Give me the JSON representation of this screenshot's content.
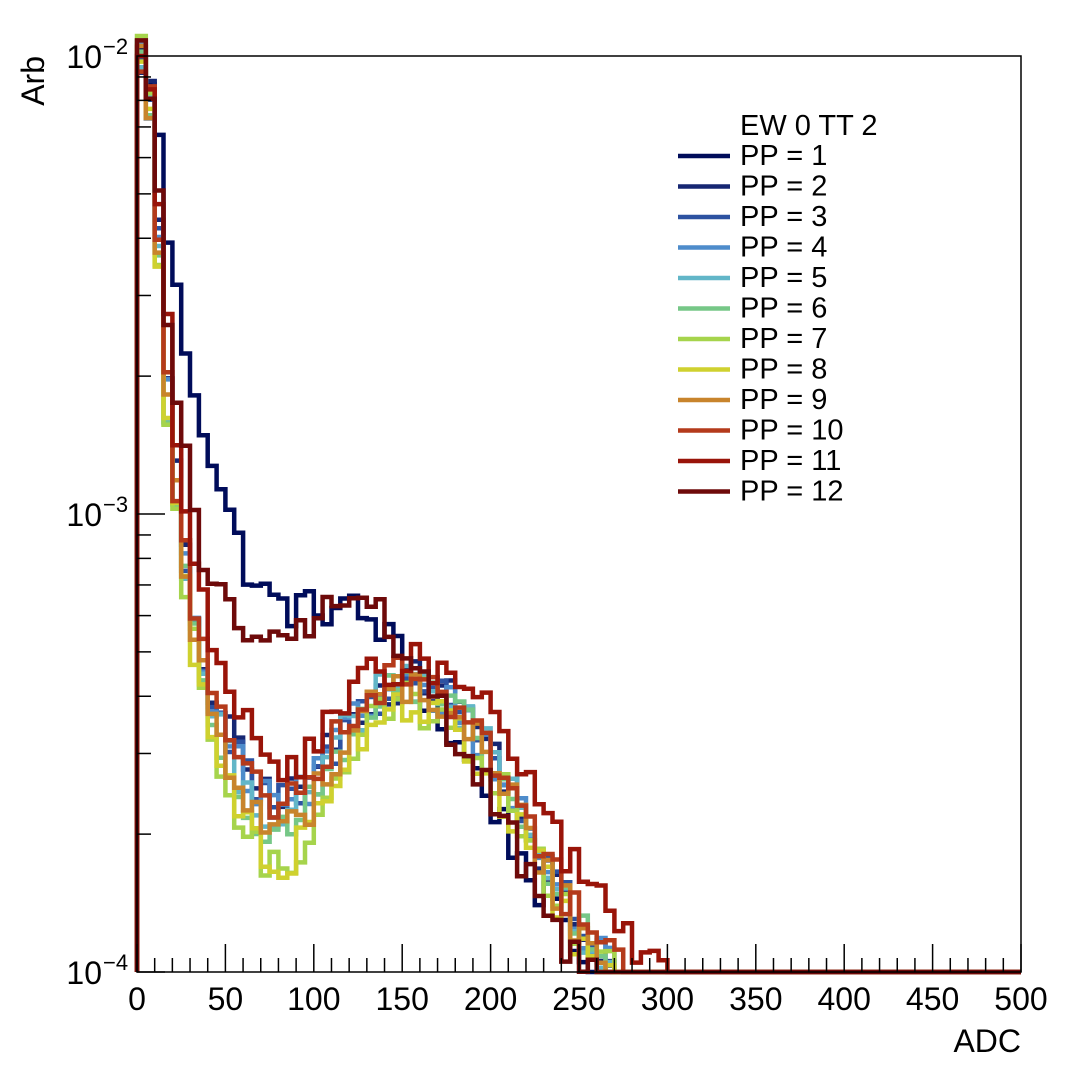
{
  "chart_data": {
    "type": "line",
    "xlabel": "ADC",
    "ylabel": "Arb",
    "xlim": [
      0,
      500
    ],
    "ylim": [
      0.0001,
      0.01
    ],
    "yscale": "log",
    "x_ticks": [
      "0",
      "50",
      "100",
      "150",
      "200",
      "250",
      "300",
      "350",
      "400",
      "450",
      "500"
    ],
    "y_ticks": [
      {
        "value": 0.0001,
        "base": "10",
        "exp": "−4"
      },
      {
        "value": 0.001,
        "base": "10",
        "exp": "−3"
      },
      {
        "value": 0.01,
        "base": "10",
        "exp": "−2"
      }
    ],
    "legend": {
      "title": "EW 0 TT 2",
      "position": "top-right"
    },
    "x": [
      0,
      5,
      10,
      15,
      20,
      25,
      30,
      40,
      50,
      60,
      70,
      80,
      90,
      100,
      110,
      120,
      130,
      140,
      150,
      160,
      170,
      180,
      190,
      200,
      210,
      220,
      230,
      240,
      250,
      260,
      270,
      280,
      290,
      300,
      310,
      320,
      330,
      340,
      350,
      360
    ],
    "series": [
      {
        "name": "PP = 1",
        "color": "#000c5a",
        "values": [
          0.01,
          0.01,
          0.0085,
          0.0048,
          0.0034,
          0.0026,
          0.0021,
          0.00145,
          0.00105,
          0.0008,
          0.00068,
          0.00063,
          0.00062,
          0.00062,
          0.00063,
          0.00062,
          0.00059,
          0.00056,
          0.00048,
          0.00042,
          0.00036,
          0.00032,
          0.00028,
          0.00024,
          0.0002,
          0.00017,
          0.000148,
          0.000125,
          0.000108,
          0.0001,
          0.0001,
          0.0001,
          0.0001,
          0.0001,
          0.0001,
          0.0001,
          0.0001,
          0.0001,
          0.0001,
          0.0001
        ]
      },
      {
        "name": "PP = 2",
        "color": "#162672",
        "values": [
          0.01,
          0.01,
          0.0068,
          0.0026,
          0.0015,
          0.00095,
          0.00068,
          0.00043,
          0.00034,
          0.00029,
          0.00025,
          0.000235,
          0.000245,
          0.00027,
          0.00031,
          0.00035,
          0.00039,
          0.00042,
          0.00043,
          0.00043,
          0.00042,
          0.0004,
          0.00036,
          0.00031,
          0.00026,
          0.00021,
          0.00017,
          0.000145,
          0.000125,
          0.00011,
          0.0001,
          0.0001,
          0.0001,
          0.0001,
          0.0001,
          0.0001,
          0.0001,
          0.0001,
          0.0001,
          0.0001
        ]
      },
      {
        "name": "PP = 3",
        "color": "#2d52a1",
        "values": [
          0.01,
          0.01,
          0.0066,
          0.0025,
          0.00145,
          0.00092,
          0.00066,
          0.00042,
          0.00033,
          0.00028,
          0.00024,
          0.00023,
          0.00024,
          0.00026,
          0.0003,
          0.00034,
          0.00038,
          0.00041,
          0.00043,
          0.00042,
          0.00041,
          0.00039,
          0.00035,
          0.00031,
          0.00026,
          0.00022,
          0.00018,
          0.00015,
          0.00013,
          0.000115,
          0.000105,
          0.0001,
          0.0001,
          0.0001,
          0.0001,
          0.0001,
          0.0001,
          0.0001,
          0.0001,
          0.0001
        ]
      },
      {
        "name": "PP = 4",
        "color": "#4e8ccb",
        "values": [
          0.01,
          0.01,
          0.0064,
          0.0024,
          0.0014,
          0.0009,
          0.00065,
          0.00041,
          0.00032,
          0.00027,
          0.00024,
          0.000225,
          0.000235,
          0.00026,
          0.0003,
          0.00034,
          0.00038,
          0.00041,
          0.00043,
          0.00042,
          0.00041,
          0.00038,
          0.00034,
          0.0003,
          0.00025,
          0.00021,
          0.00017,
          0.000145,
          0.000125,
          0.00011,
          0.0001,
          0.0001,
          0.0001,
          0.0001,
          0.0001,
          0.0001,
          0.0001,
          0.0001,
          0.0001,
          0.0001
        ]
      },
      {
        "name": "PP = 5",
        "color": "#62b6c8",
        "values": [
          0.01,
          0.01,
          0.0062,
          0.0023,
          0.00135,
          0.00088,
          0.00063,
          0.0004,
          0.00031,
          0.00026,
          0.00023,
          0.00022,
          0.00023,
          0.000255,
          0.0003,
          0.00034,
          0.00038,
          0.00042,
          0.00044,
          0.00043,
          0.00041,
          0.00038,
          0.00034,
          0.0003,
          0.00025,
          0.00021,
          0.00017,
          0.000145,
          0.000125,
          0.00011,
          0.0001,
          0.0001,
          0.0001,
          0.0001,
          0.0001,
          0.0001,
          0.0001,
          0.0001,
          0.0001,
          0.0001
        ]
      },
      {
        "name": "PP = 6",
        "color": "#76c787",
        "values": [
          0.01,
          0.01,
          0.006,
          0.0022,
          0.0013,
          0.00085,
          0.0006,
          0.00038,
          0.0003,
          0.00025,
          0.00021,
          0.0002,
          0.00021,
          0.000245,
          0.00029,
          0.00033,
          0.00037,
          0.0004,
          0.00042,
          0.00041,
          0.00039,
          0.00036,
          0.00033,
          0.00029,
          0.00024,
          0.0002,
          0.00017,
          0.000145,
          0.000125,
          0.00011,
          0.0001,
          0.0001,
          0.0001,
          0.0001,
          0.0001,
          0.0001,
          0.0001,
          0.0001,
          0.0001,
          0.0001
        ]
      },
      {
        "name": "PP = 7",
        "color": "#a6d44c",
        "values": [
          0.01,
          0.01,
          0.0058,
          0.0021,
          0.00125,
          0.0008,
          0.00057,
          0.00036,
          0.00026,
          0.00021,
          0.000175,
          0.000165,
          0.00018,
          0.00021,
          0.00026,
          0.00031,
          0.00035,
          0.00038,
          0.00039,
          0.00038,
          0.00036,
          0.00034,
          0.00031,
          0.00028,
          0.00024,
          0.0002,
          0.000165,
          0.00014,
          0.00012,
          0.000105,
          0.0001,
          0.0001,
          0.0001,
          0.0001,
          0.0001,
          0.0001,
          0.0001,
          0.0001,
          0.0001,
          0.0001
        ]
      },
      {
        "name": "PP = 8",
        "color": "#cfd12f",
        "values": [
          0.01,
          0.01,
          0.0058,
          0.0021,
          0.00125,
          0.0008,
          0.00057,
          0.00036,
          0.00027,
          0.00022,
          0.00018,
          0.00017,
          0.000185,
          0.000215,
          0.00026,
          0.00031,
          0.00035,
          0.00038,
          0.00039,
          0.00038,
          0.00036,
          0.00033,
          0.0003,
          0.00027,
          0.00023,
          0.00019,
          0.00016,
          0.000135,
          0.000115,
          0.000105,
          0.0001,
          0.0001,
          0.0001,
          0.0001,
          0.0001,
          0.0001,
          0.0001,
          0.0001,
          0.0001,
          0.0001
        ]
      },
      {
        "name": "PP = 9",
        "color": "#c8842c",
        "values": [
          0.01,
          0.01,
          0.0062,
          0.0023,
          0.00135,
          0.00088,
          0.00063,
          0.0004,
          0.00031,
          0.00025,
          0.00021,
          0.0002,
          0.00021,
          0.00024,
          0.00029,
          0.00033,
          0.00037,
          0.0004,
          0.00042,
          0.00041,
          0.00039,
          0.00036,
          0.00033,
          0.00029,
          0.00025,
          0.00021,
          0.00017,
          0.000145,
          0.000125,
          0.00011,
          0.0001,
          0.0001,
          0.0001,
          0.0001,
          0.0001,
          0.0001,
          0.0001,
          0.0001,
          0.0001,
          0.0001
        ]
      },
      {
        "name": "PP = 10",
        "color": "#b43a1b",
        "values": [
          0.01,
          0.01,
          0.0066,
          0.0025,
          0.00145,
          0.00095,
          0.00068,
          0.00044,
          0.00035,
          0.00029,
          0.00025,
          0.000235,
          0.00025,
          0.00028,
          0.00032,
          0.00036,
          0.0004,
          0.00043,
          0.00045,
          0.00044,
          0.00042,
          0.00039,
          0.00035,
          0.00031,
          0.00026,
          0.00022,
          0.00018,
          0.000155,
          0.00013,
          0.000115,
          0.000105,
          0.0001,
          0.0001,
          0.0001,
          0.0001,
          0.0001,
          0.0001,
          0.0001,
          0.0001,
          0.0001
        ]
      },
      {
        "name": "PP = 11",
        "color": "#991409",
        "values": [
          0.01,
          0.01,
          0.0075,
          0.0032,
          0.0019,
          0.0012,
          0.00088,
          0.00055,
          0.00042,
          0.00035,
          0.0003,
          0.00029,
          0.00029,
          0.00031,
          0.00035,
          0.00039,
          0.00043,
          0.00046,
          0.00047,
          0.00047,
          0.00046,
          0.00044,
          0.00041,
          0.00037,
          0.00032,
          0.00027,
          0.00023,
          0.00019,
          0.000165,
          0.000145,
          0.00013,
          0.000115,
          0.000105,
          0.0001,
          0.0001,
          0.0001,
          0.0001,
          0.0001,
          0.0001,
          0.0001
        ]
      },
      {
        "name": "PP = 12",
        "color": "#6e0a0a",
        "values": [
          0.01,
          0.01,
          0.008,
          0.0035,
          0.0022,
          0.0015,
          0.0011,
          0.00075,
          0.00062,
          0.00055,
          0.00052,
          0.00052,
          0.00055,
          0.00059,
          0.00063,
          0.00065,
          0.00064,
          0.00058,
          0.00051,
          0.00044,
          0.00038,
          0.00033,
          0.00028,
          0.00024,
          0.0002,
          0.00017,
          0.00014,
          0.00012,
          0.000105,
          0.0001,
          0.0001,
          0.0001,
          0.0001,
          0.0001,
          0.0001,
          0.0001,
          0.0001,
          0.0001,
          0.0001,
          0.0001
        ]
      }
    ]
  }
}
